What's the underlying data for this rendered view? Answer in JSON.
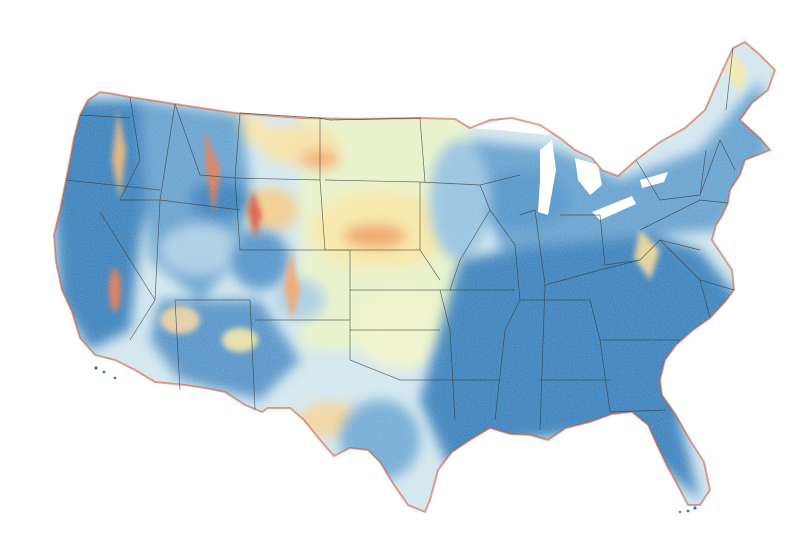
{
  "map": {
    "kind": "choropleth-raster",
    "region": "contiguous-united-states",
    "background_color": "#ffffff",
    "border_color": "#3a3a3a",
    "palette": [
      "#2f79b8",
      "#5b9bcc",
      "#a4cbe3",
      "#e0f0c8",
      "#fbe49a",
      "#f3a25e",
      "#d4442f"
    ],
    "legend_visible": false,
    "title_visible": false
  }
}
